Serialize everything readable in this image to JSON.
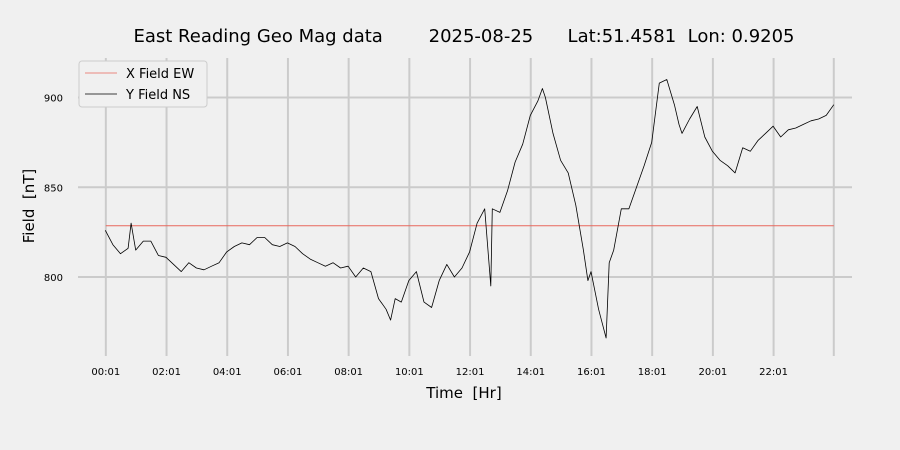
{
  "chart_data": {
    "type": "line",
    "title": "East Reading Geo Mag data        2025-08-25      Lat:51.4581  Lon: 0.9205",
    "xlabel": "Time  [Hr]",
    "ylabel": "Field  [nT]",
    "x_unit": "hours",
    "x_ticks": [
      {
        "value": 0.0167,
        "label": "00:01"
      },
      {
        "value": 2.0167,
        "label": "02:01"
      },
      {
        "value": 4.0167,
        "label": "04:01"
      },
      {
        "value": 6.0167,
        "label": "06:01"
      },
      {
        "value": 8.0167,
        "label": "08:01"
      },
      {
        "value": 10.0167,
        "label": "10:01"
      },
      {
        "value": 12.0167,
        "label": "12:01"
      },
      {
        "value": 14.0167,
        "label": "14:01"
      },
      {
        "value": 16.0167,
        "label": "16:01"
      },
      {
        "value": 18.0167,
        "label": "18:01"
      },
      {
        "value": 20.0167,
        "label": "20:01"
      },
      {
        "value": 22.0167,
        "label": "22:01"
      }
    ],
    "xlim": [
      -0.9,
      24.6
    ],
    "ylim": [
      756,
      922
    ],
    "y_ticks": [
      800,
      850,
      900
    ],
    "grid": true,
    "legend": "top-left",
    "series": [
      {
        "name": "X Field EW",
        "color": "#e8675c",
        "x": [
          0.0167,
          24.0
        ],
        "y": [
          828.5,
          828.5
        ]
      },
      {
        "name": "Y Field NS",
        "color": "#000000",
        "x": [
          0.0,
          0.25,
          0.5,
          0.75,
          0.85,
          1.0,
          1.25,
          1.5,
          1.75,
          2.0,
          2.25,
          2.5,
          2.75,
          3.0,
          3.25,
          3.5,
          3.75,
          4.0,
          4.25,
          4.5,
          4.75,
          5.0,
          5.25,
          5.5,
          5.75,
          6.0,
          6.25,
          6.5,
          6.75,
          7.0,
          7.25,
          7.5,
          7.75,
          8.0,
          8.25,
          8.5,
          8.75,
          9.0,
          9.25,
          9.4,
          9.55,
          9.75,
          10.0,
          10.25,
          10.5,
          10.75,
          11.0,
          11.25,
          11.5,
          11.75,
          12.0,
          12.25,
          12.5,
          12.7,
          12.75,
          13.0,
          13.25,
          13.5,
          13.75,
          14.0,
          14.25,
          14.4,
          14.5,
          14.75,
          15.0,
          15.25,
          15.5,
          15.75,
          15.9,
          16.0,
          16.25,
          16.5,
          16.6,
          16.75,
          17.0,
          17.25,
          17.5,
          17.75,
          18.0,
          18.25,
          18.5,
          18.75,
          18.9,
          19.0,
          19.25,
          19.5,
          19.75,
          20.0,
          20.25,
          20.5,
          20.75,
          21.0,
          21.25,
          21.5,
          21.75,
          22.0,
          22.25,
          22.5,
          22.75,
          23.0,
          23.25,
          23.5,
          23.75,
          24.0
        ],
        "y": [
          826,
          818,
          813,
          816,
          830,
          815,
          820,
          820,
          812,
          811,
          807,
          803,
          808,
          805,
          804,
          806,
          808,
          814,
          817,
          819,
          818,
          822,
          822,
          818,
          817,
          819,
          817,
          813,
          810,
          808,
          806,
          808,
          805,
          806,
          800,
          805,
          803,
          788,
          782,
          776,
          788,
          786,
          798,
          803,
          786,
          783,
          798,
          807,
          800,
          805,
          814,
          830,
          838,
          795,
          838,
          836,
          848,
          864,
          874,
          890,
          898,
          905,
          900,
          880,
          865,
          858,
          840,
          815,
          798,
          803,
          782,
          766,
          808,
          815,
          838,
          838,
          850,
          862,
          875,
          908,
          910,
          896,
          885,
          880,
          888,
          895,
          878,
          870,
          865,
          862,
          858,
          872,
          870,
          876,
          880,
          884,
          878,
          882,
          883,
          885,
          887,
          888,
          890,
          896
        ]
      }
    ]
  }
}
